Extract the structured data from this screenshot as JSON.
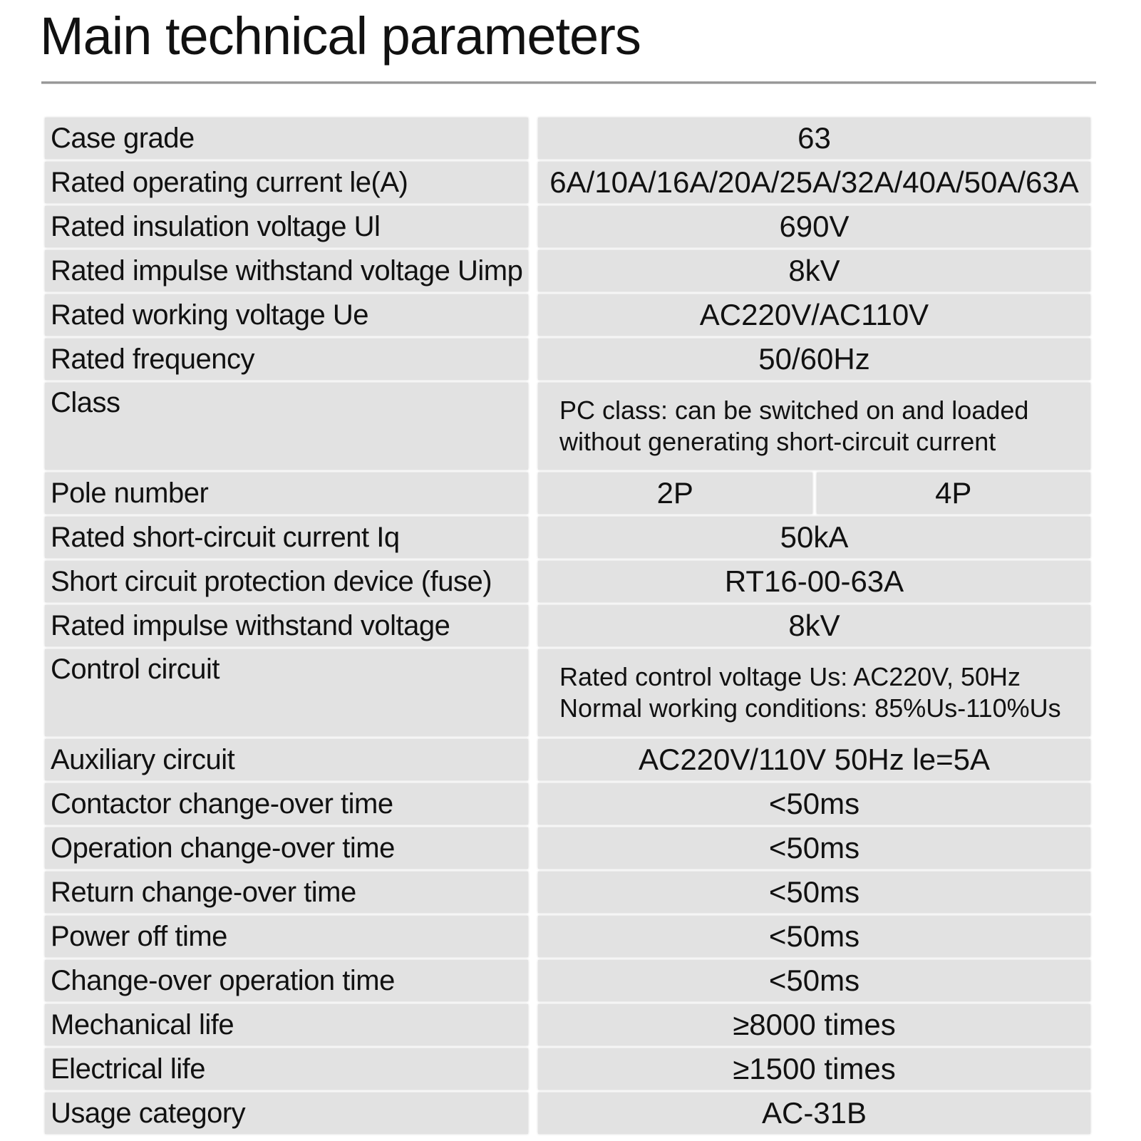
{
  "title": "Main technical parameters",
  "table": {
    "rows": [
      {
        "label": "Case  grade",
        "values": [
          "63"
        ]
      },
      {
        "label": "Rated operating current le(A)",
        "values": [
          "6A/10A/16A/20A/25A/32A/40A/50A/63A"
        ]
      },
      {
        "label": "Rated insulation voltage Ul",
        "values": [
          "690V"
        ]
      },
      {
        "label": "Rated impulse withstand voltage Uimp",
        "values": [
          "8kV"
        ]
      },
      {
        "label": "Rated working voltage Ue",
        "values": [
          "AC220V/AC110V"
        ]
      },
      {
        "label": "Rated frequency",
        "values": [
          "50/60Hz"
        ]
      },
      {
        "label": "Class",
        "lines": [
          "PC class: can be switched on and loaded",
          "without generating short-circuit current"
        ]
      },
      {
        "label": "Pole number",
        "values": [
          "2P",
          "4P"
        ]
      },
      {
        "label": "Rated short-circuit current Iq",
        "values": [
          "50kA"
        ]
      },
      {
        "label": "Short circuit protection device (fuse)",
        "values": [
          "RT16-00-63A"
        ]
      },
      {
        "label": "Rated impulse withstand voltage",
        "values": [
          "8kV"
        ]
      },
      {
        "label": "Control circuit",
        "lines": [
          "Rated control voltage Us: AC220V, 50Hz",
          "Normal working conditions: 85%Us-110%Us"
        ]
      },
      {
        "label": "Auxiliary circuit",
        "values": [
          "AC220V/110V  50Hz le=5A"
        ]
      },
      {
        "label": "Contactor change-over time",
        "values": [
          "<50ms"
        ]
      },
      {
        "label": "Operation change-over time",
        "values": [
          "<50ms"
        ]
      },
      {
        "label": "Return change-over time",
        "values": [
          "<50ms"
        ]
      },
      {
        "label": "Power off time",
        "values": [
          "<50ms"
        ]
      },
      {
        "label": "Change-over operation time",
        "values": [
          "<50ms"
        ]
      },
      {
        "label": "Mechanical life",
        "values": [
          "≥8000  times"
        ]
      },
      {
        "label": "Electrical life",
        "values": [
          "≥1500 times"
        ]
      },
      {
        "label": "Usage category",
        "values": [
          "AC-31B"
        ]
      }
    ]
  }
}
